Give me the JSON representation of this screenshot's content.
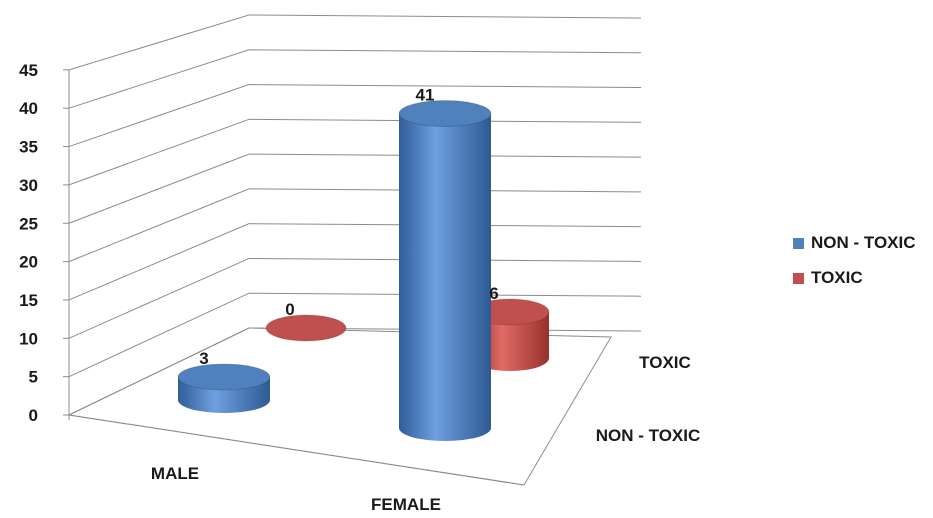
{
  "chart_data": {
    "type": "bar",
    "style": "3d-cylinder",
    "categories": [
      "MALE",
      "FEMALE"
    ],
    "series": [
      {
        "name": "NON - TOXIC",
        "color": "#4f81bd",
        "values": [
          3,
          41
        ]
      },
      {
        "name": "TOXIC",
        "color": "#c0504d",
        "values": [
          0,
          6
        ]
      }
    ],
    "yticks": [
      "0",
      "5",
      "10",
      "15",
      "20",
      "25",
      "30",
      "35",
      "40",
      "45"
    ],
    "ylim": [
      0,
      45
    ],
    "grid": true,
    "legend_position": "right",
    "data_labels": true
  }
}
